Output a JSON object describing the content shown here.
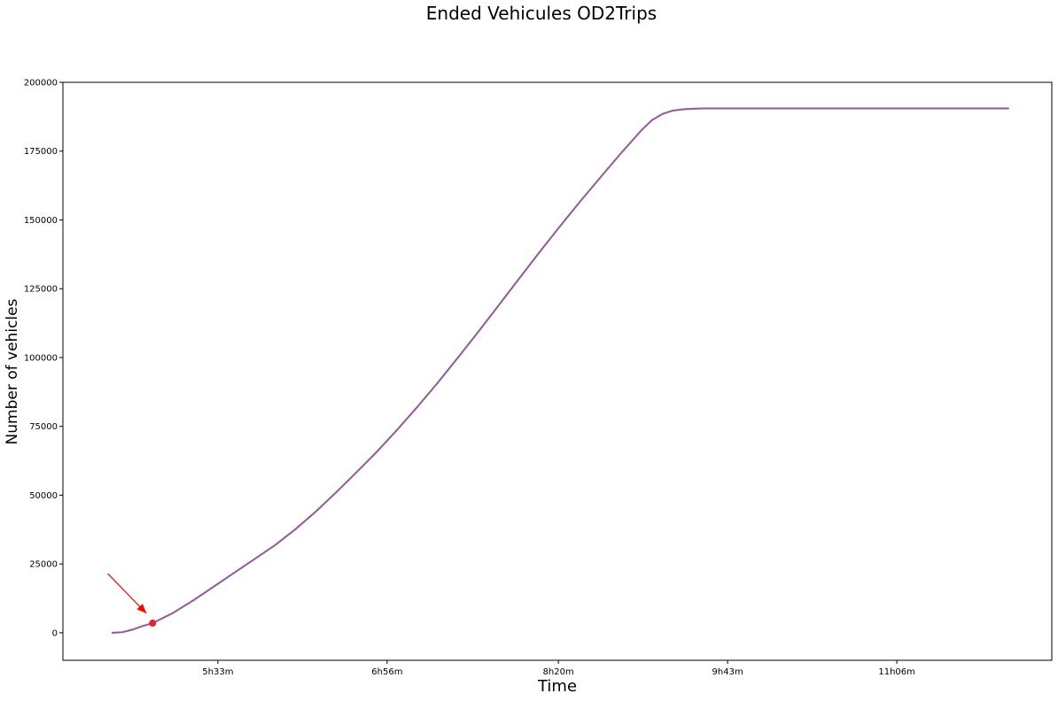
{
  "chart_data": {
    "type": "line",
    "title": "Ended Vehicules OD2Trips",
    "xlabel": "Time",
    "ylabel": "Number of vehicles",
    "x_unit": "minutes since midnight",
    "xlim": [
      257,
      742
    ],
    "ylim": [
      -10000,
      200000
    ],
    "x_ticks": [
      {
        "value": 333,
        "label": "5h33m"
      },
      {
        "value": 416,
        "label": "6h56m"
      },
      {
        "value": 500,
        "label": "8h20m"
      },
      {
        "value": 583,
        "label": "9h43m"
      },
      {
        "value": 666,
        "label": "11h06m"
      }
    ],
    "y_ticks": [
      {
        "value": 0,
        "label": "0"
      },
      {
        "value": 25000,
        "label": "25000"
      },
      {
        "value": 50000,
        "label": "50000"
      },
      {
        "value": 75000,
        "label": "75000"
      },
      {
        "value": 100000,
        "label": "100000"
      },
      {
        "value": 125000,
        "label": "125000"
      },
      {
        "value": 150000,
        "label": "150000"
      },
      {
        "value": 175000,
        "label": "175000"
      },
      {
        "value": 200000,
        "label": "200000"
      }
    ],
    "grid": false,
    "legend": "none",
    "series": [
      {
        "color": "#7f5fa8",
        "x": [
          281,
          286,
          291,
          296,
          301,
          311,
          321,
          331,
          341,
          351,
          361,
          371,
          381,
          391,
          401,
          411,
          421,
          431,
          441,
          451,
          461,
          471,
          481,
          491,
          501,
          511,
          521,
          531,
          541,
          546,
          551,
          556,
          561,
          566,
          571,
          581,
          591,
          611,
          641,
          671,
          701,
          721
        ],
        "y": [
          0,
          200,
          1100,
          2400,
          3500,
          7200,
          11800,
          16800,
          21800,
          26800,
          31800,
          37600,
          44000,
          51000,
          58300,
          65800,
          73800,
          82200,
          91000,
          100200,
          109600,
          119200,
          128900,
          138500,
          147900,
          157000,
          165800,
          174500,
          182800,
          186300,
          188500,
          189700,
          190200,
          190400,
          190500,
          190500,
          190500,
          190500,
          190500,
          190500,
          190500,
          190500
        ]
      }
    ],
    "annotation": {
      "marker_x": 301,
      "marker_y": 3500,
      "marker_color": "#e8202a",
      "arrow_from_x": 279,
      "arrow_from_y": 21500,
      "arrow_to_x": 298,
      "arrow_to_y": 7000,
      "arrow_color": "#ff0000"
    }
  }
}
